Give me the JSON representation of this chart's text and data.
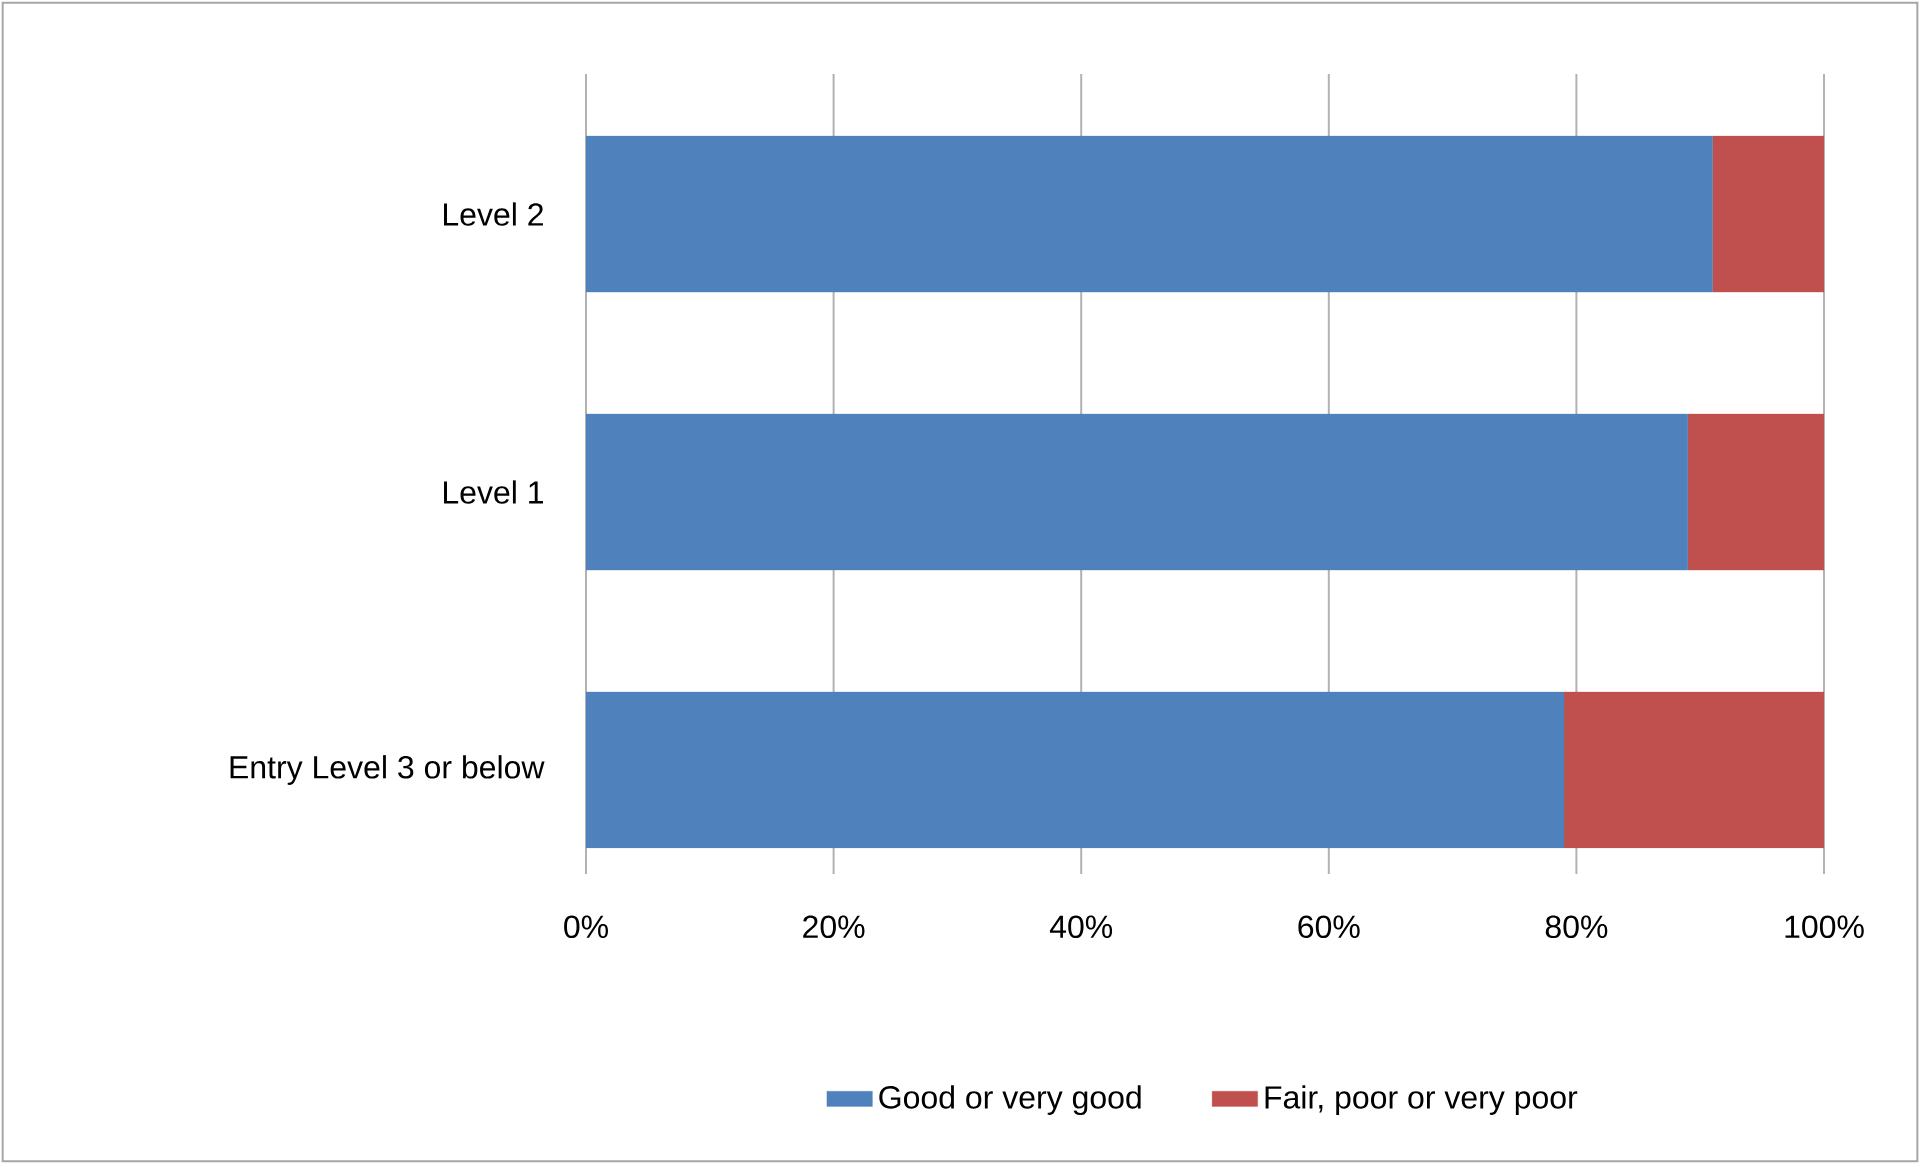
{
  "chart_data": {
    "type": "bar",
    "orientation": "horizontal",
    "stacked": true,
    "categories": [
      "Level 2",
      "Level 1",
      "Entry Level 3 or below"
    ],
    "series": [
      {
        "name": "Good or very good",
        "color": "#4f81bd",
        "values": [
          91,
          89,
          79
        ]
      },
      {
        "name": "Fair, poor or very poor",
        "color": "#c0504d",
        "values": [
          9,
          11,
          21
        ]
      }
    ],
    "xlim": [
      0,
      100
    ],
    "xticks": [
      {
        "value": 0,
        "label": "0%"
      },
      {
        "value": 20,
        "label": "20%"
      },
      {
        "value": 40,
        "label": "40%"
      },
      {
        "value": 60,
        "label": "60%"
      },
      {
        "value": 80,
        "label": "80%"
      },
      {
        "value": 100,
        "label": "100%"
      }
    ],
    "grid": "x",
    "legend": "bottom"
  }
}
